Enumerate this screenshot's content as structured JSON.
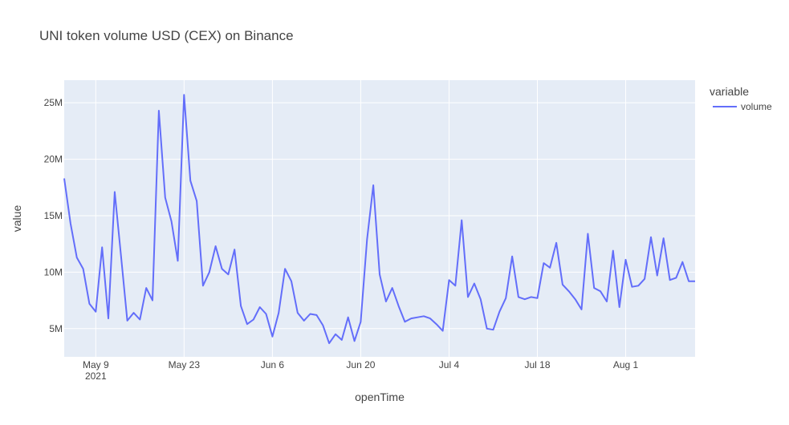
{
  "chart_data": {
    "type": "line",
    "title": "UNI token volume USD (CEX) on Binance",
    "xlabel": "openTime",
    "ylabel": "value",
    "legend": {
      "title": "variable",
      "placement": "right"
    },
    "grid": true,
    "x_tick_labels": [
      {
        "main": "May 9",
        "sub": "2021"
      },
      {
        "main": "May 23",
        "sub": ""
      },
      {
        "main": "Jun 6",
        "sub": ""
      },
      {
        "main": "Jun 20",
        "sub": ""
      },
      {
        "main": "Jul 4",
        "sub": ""
      },
      {
        "main": "Jul 18",
        "sub": ""
      },
      {
        "main": "Aug 1",
        "sub": ""
      }
    ],
    "x_tick_dates": [
      "2021-05-09",
      "2021-05-23",
      "2021-06-06",
      "2021-06-20",
      "2021-07-04",
      "2021-07-18",
      "2021-08-01"
    ],
    "y_ticks": [
      5000000,
      10000000,
      15000000,
      20000000,
      25000000
    ],
    "y_tick_labels": [
      "5M",
      "10M",
      "15M",
      "20M",
      "25M"
    ],
    "xlim": [
      "2021-05-04",
      "2021-08-12"
    ],
    "ylim": [
      2500000,
      27000000
    ],
    "series": [
      {
        "name": "volume",
        "color": "#636efa",
        "x": [
          "2021-05-04",
          "2021-05-05",
          "2021-05-06",
          "2021-05-07",
          "2021-05-08",
          "2021-05-09",
          "2021-05-10",
          "2021-05-11",
          "2021-05-12",
          "2021-05-13",
          "2021-05-14",
          "2021-05-15",
          "2021-05-16",
          "2021-05-17",
          "2021-05-18",
          "2021-05-19",
          "2021-05-20",
          "2021-05-21",
          "2021-05-22",
          "2021-05-23",
          "2021-05-24",
          "2021-05-25",
          "2021-05-26",
          "2021-05-27",
          "2021-05-28",
          "2021-05-29",
          "2021-05-30",
          "2021-05-31",
          "2021-06-01",
          "2021-06-02",
          "2021-06-03",
          "2021-06-04",
          "2021-06-05",
          "2021-06-06",
          "2021-06-07",
          "2021-06-08",
          "2021-06-09",
          "2021-06-10",
          "2021-06-11",
          "2021-06-12",
          "2021-06-13",
          "2021-06-14",
          "2021-06-15",
          "2021-06-16",
          "2021-06-17",
          "2021-06-18",
          "2021-06-19",
          "2021-06-20",
          "2021-06-21",
          "2021-06-22",
          "2021-06-23",
          "2021-06-24",
          "2021-06-25",
          "2021-06-26",
          "2021-06-27",
          "2021-06-28",
          "2021-06-29",
          "2021-06-30",
          "2021-07-01",
          "2021-07-02",
          "2021-07-03",
          "2021-07-04",
          "2021-07-05",
          "2021-07-06",
          "2021-07-07",
          "2021-07-08",
          "2021-07-09",
          "2021-07-10",
          "2021-07-11",
          "2021-07-12",
          "2021-07-13",
          "2021-07-14",
          "2021-07-15",
          "2021-07-16",
          "2021-07-17",
          "2021-07-18",
          "2021-07-19",
          "2021-07-20",
          "2021-07-21",
          "2021-07-22",
          "2021-07-23",
          "2021-07-24",
          "2021-07-25",
          "2021-07-26",
          "2021-07-27",
          "2021-07-28",
          "2021-07-29",
          "2021-07-30",
          "2021-07-31",
          "2021-08-01",
          "2021-08-02",
          "2021-08-03",
          "2021-08-04",
          "2021-08-05",
          "2021-08-06",
          "2021-08-07",
          "2021-08-08",
          "2021-08-09",
          "2021-08-10",
          "2021-08-11",
          "2021-08-12"
        ],
        "values": [
          18300000,
          14300000,
          11300000,
          10300000,
          7200000,
          6500000,
          12200000,
          5900000,
          17100000,
          11500000,
          5700000,
          6400000,
          5800000,
          8600000,
          7500000,
          24300000,
          16600000,
          14500000,
          11000000,
          25700000,
          18100000,
          16300000,
          8800000,
          10000000,
          12300000,
          10300000,
          9800000,
          12000000,
          7000000,
          5400000,
          5800000,
          6900000,
          6300000,
          4300000,
          6400000,
          10300000,
          9200000,
          6400000,
          5700000,
          6300000,
          6200000,
          5300000,
          3700000,
          4500000,
          4000000,
          6000000,
          3900000,
          5600000,
          12900000,
          17700000,
          9800000,
          7400000,
          8600000,
          7000000,
          5600000,
          5900000,
          6000000,
          6100000,
          5900000,
          5400000,
          4800000,
          9300000,
          8800000,
          14600000,
          7800000,
          9000000,
          7600000,
          5000000,
          4900000,
          6500000,
          7700000,
          11400000,
          7800000,
          7600000,
          7800000,
          7700000,
          10800000,
          10400000,
          12600000,
          8900000,
          8300000,
          7600000,
          6700000,
          13400000,
          8600000,
          8300000,
          7400000,
          11900000,
          6900000,
          11100000,
          8700000,
          8800000,
          9400000,
          13100000,
          9700000,
          13000000,
          9300000,
          9500000,
          10900000,
          9200000,
          9200000
        ]
      }
    ]
  }
}
